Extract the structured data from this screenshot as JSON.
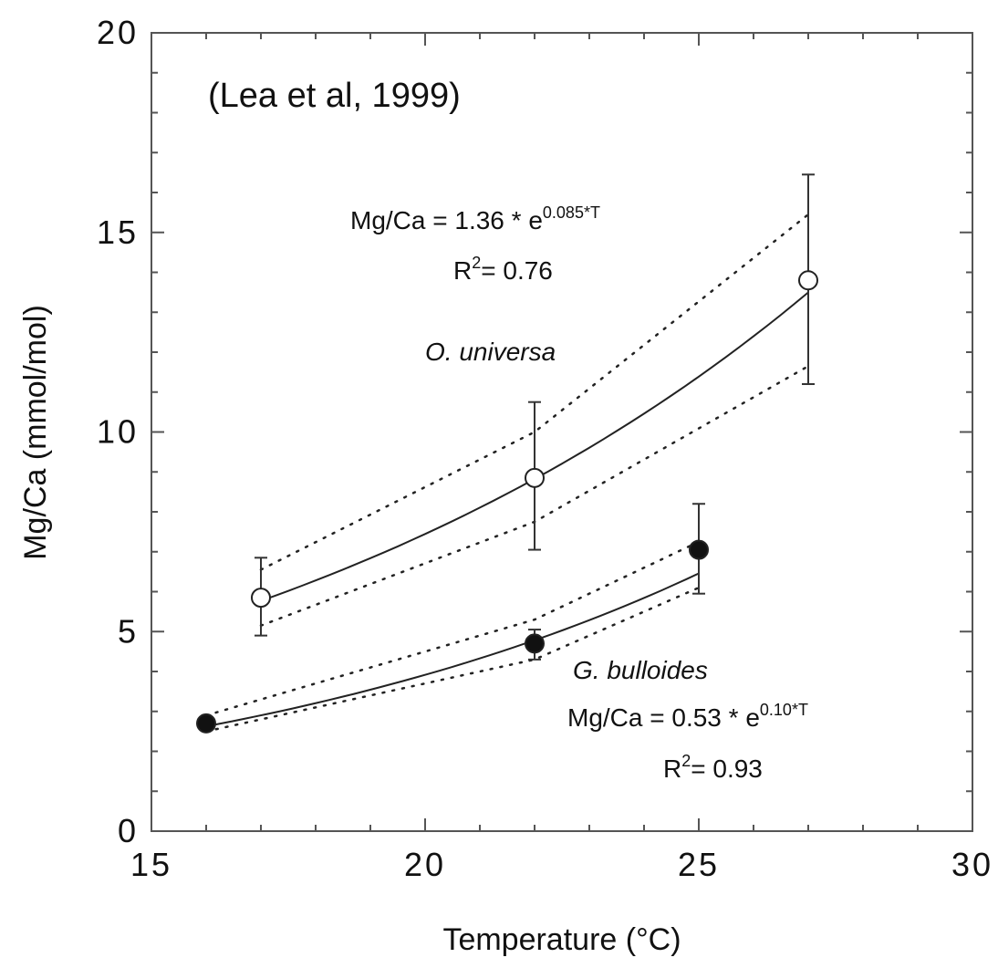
{
  "chart_data": {
    "type": "scatter",
    "title": "",
    "xlabel": "Temperature (°C)",
    "ylabel": "Mg/Ca (mmol/mol)",
    "xlim": [
      15,
      30
    ],
    "ylim": [
      0,
      20
    ],
    "x_ticks": [
      15,
      20,
      25,
      30
    ],
    "y_ticks": [
      0,
      5,
      10,
      15,
      20
    ],
    "x_minor_step": 1,
    "y_minor_step": 1,
    "grid": false,
    "source_note": "(Lea et al, 1999)",
    "series": [
      {
        "name": "O. universa",
        "marker": "open-circle",
        "x": [
          17,
          22,
          27
        ],
        "y": [
          5.85,
          8.85,
          13.8
        ],
        "err_low": [
          4.9,
          7.05,
          11.2
        ],
        "err_high": [
          6.85,
          10.75,
          16.45
        ],
        "fit": {
          "a": 1.36,
          "b": 0.085,
          "x_range": [
            17,
            27
          ]
        },
        "band_upper": [
          [
            17,
            6.55
          ],
          [
            22,
            10.0
          ],
          [
            27,
            15.45
          ]
        ],
        "band_lower": [
          [
            17,
            5.15
          ],
          [
            22,
            7.75
          ],
          [
            27,
            11.65
          ]
        ],
        "equation_prefix": "Mg/Ca = 1.36 * e",
        "equation_exp": "0.085*T",
        "r2_prefix": "R",
        "r2_suffix": "= 0.76"
      },
      {
        "name": "G. bulloides",
        "marker": "filled-circle",
        "x": [
          16,
          22,
          25
        ],
        "y": [
          2.7,
          4.7,
          7.05
        ],
        "err_low": [
          2.55,
          4.3,
          5.95
        ],
        "err_high": [
          2.85,
          5.05,
          8.2
        ],
        "fit": {
          "a": 0.53,
          "b": 0.1,
          "x_range": [
            16,
            25
          ]
        },
        "band_upper": [
          [
            16,
            2.9
          ],
          [
            22,
            5.3
          ],
          [
            25,
            7.25
          ]
        ],
        "band_lower": [
          [
            16,
            2.5
          ],
          [
            22,
            4.3
          ],
          [
            25,
            6.1
          ]
        ],
        "equation_prefix": "Mg/Ca = 0.53 * e",
        "equation_exp": "0.10*T",
        "r2_prefix": "R",
        "r2_suffix": "= 0.93"
      }
    ]
  }
}
